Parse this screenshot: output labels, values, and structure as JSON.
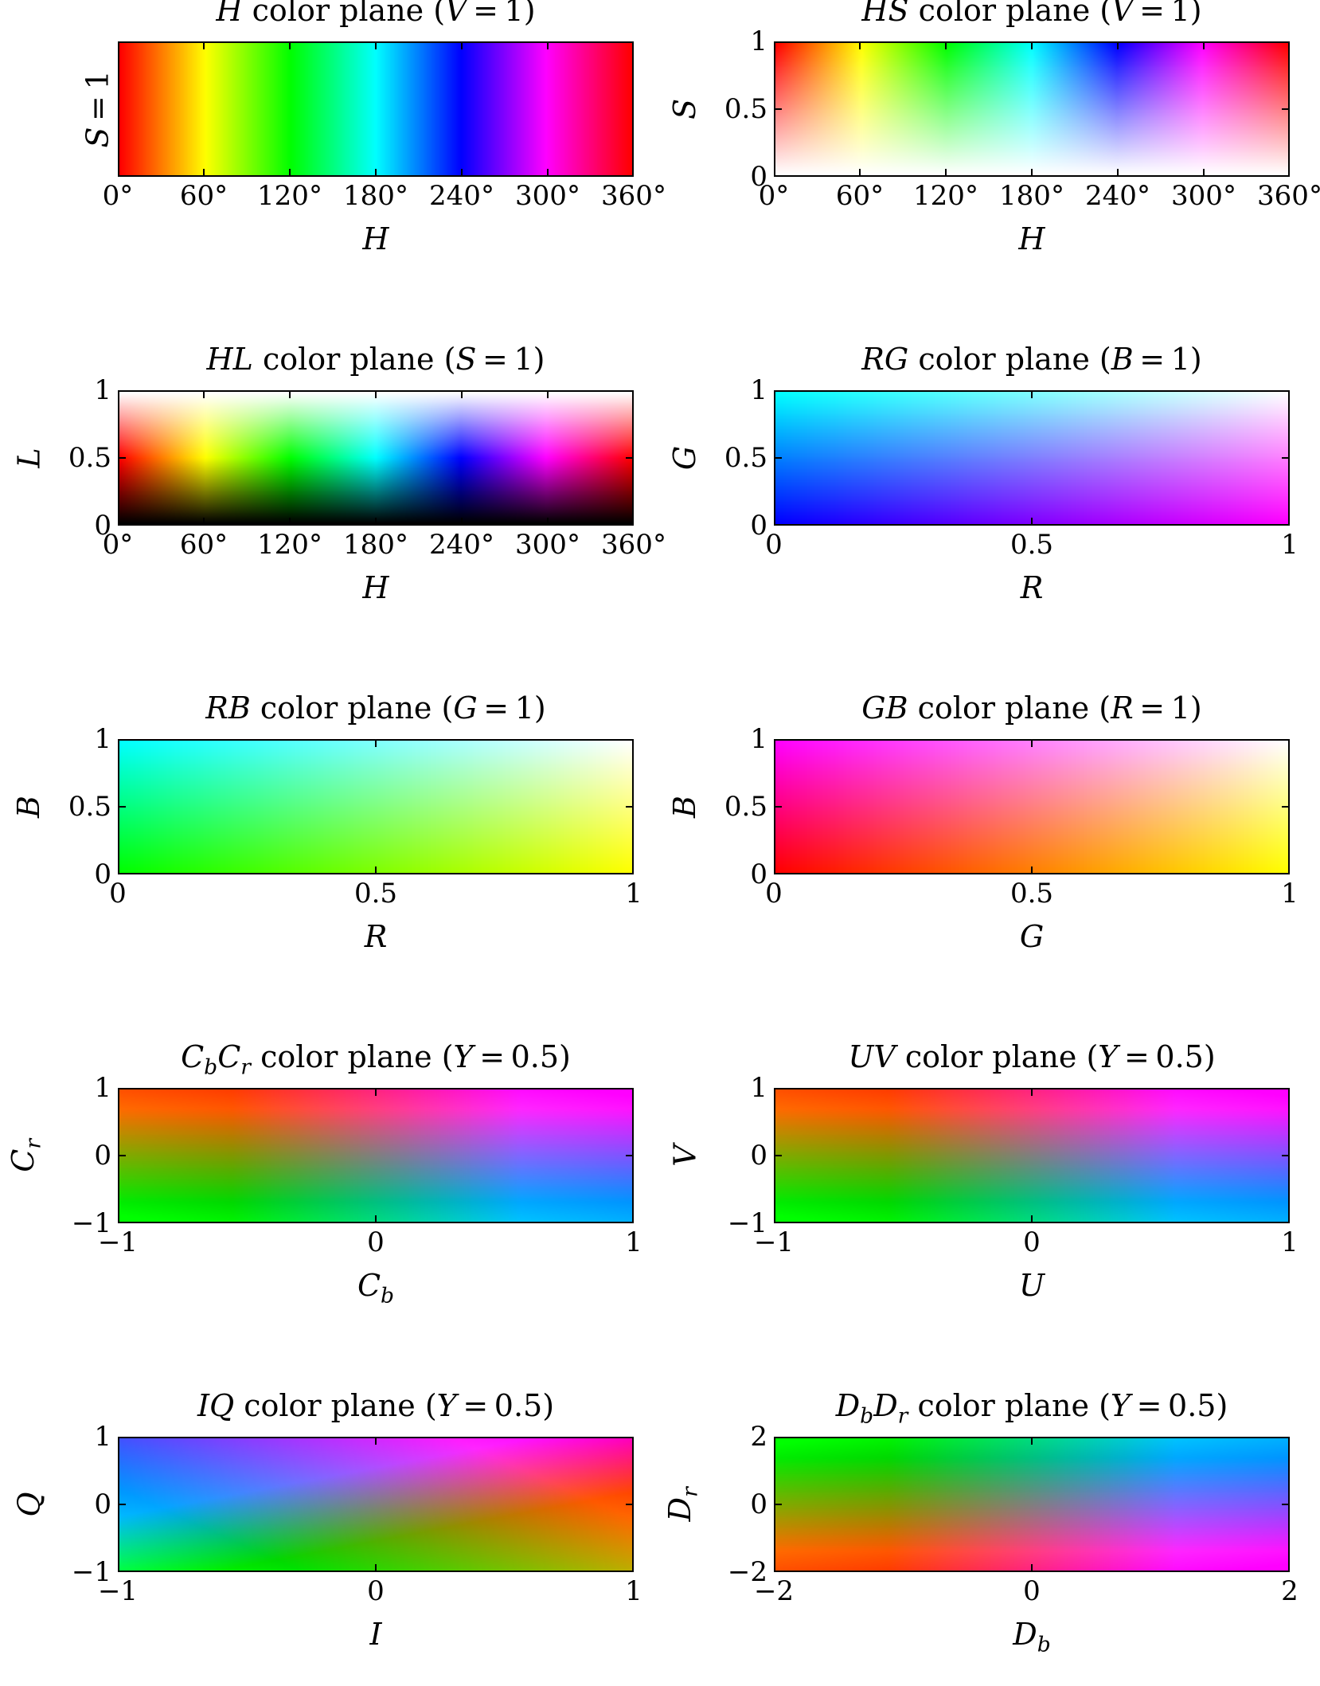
{
  "chart_data": [
    {
      "type": "heatmap",
      "space": "HSV",
      "title": "H color plane (V = 1)",
      "xlabel": "H",
      "ylabel": "S = 1",
      "xlim": [
        0,
        360
      ],
      "ylim": [
        0,
        1
      ],
      "xticks": [
        "0°",
        "60°",
        "120°",
        "180°",
        "240°",
        "300°",
        "360°"
      ],
      "yticks": []
    },
    {
      "type": "heatmap",
      "space": "HSV",
      "title": "HS color plane (V = 1)",
      "xlabel": "H",
      "ylabel": "S",
      "xlim": [
        0,
        360
      ],
      "ylim": [
        0,
        1
      ],
      "xticks": [
        "0°",
        "60°",
        "120°",
        "180°",
        "240°",
        "300°",
        "360°"
      ],
      "yticks": [
        "0",
        "0.5",
        "1"
      ]
    },
    {
      "type": "heatmap",
      "space": "HSL",
      "title": "HL color plane (S = 1)",
      "xlabel": "H",
      "ylabel": "L",
      "xlim": [
        0,
        360
      ],
      "ylim": [
        0,
        1
      ],
      "xticks": [
        "0°",
        "60°",
        "120°",
        "180°",
        "240°",
        "300°",
        "360°"
      ],
      "yticks": [
        "0",
        "0.5",
        "1"
      ]
    },
    {
      "type": "heatmap",
      "space": "RGB",
      "title": "RG color plane (B = 1)",
      "xlabel": "R",
      "ylabel": "G",
      "xlim": [
        0,
        1
      ],
      "ylim": [
        0,
        1
      ],
      "xticks": [
        "0",
        "0.5",
        "1"
      ],
      "yticks": [
        "0",
        "0.5",
        "1"
      ]
    },
    {
      "type": "heatmap",
      "space": "RGB",
      "title": "RB color plane (G = 1)",
      "xlabel": "R",
      "ylabel": "B",
      "xlim": [
        0,
        1
      ],
      "ylim": [
        0,
        1
      ],
      "xticks": [
        "0",
        "0.5",
        "1"
      ],
      "yticks": [
        "0",
        "0.5",
        "1"
      ]
    },
    {
      "type": "heatmap",
      "space": "RGB",
      "title": "GB color plane (R = 1)",
      "xlabel": "G",
      "ylabel": "B",
      "xlim": [
        0,
        1
      ],
      "ylim": [
        0,
        1
      ],
      "xticks": [
        "0",
        "0.5",
        "1"
      ],
      "yticks": [
        "0",
        "0.5",
        "1"
      ]
    },
    {
      "type": "heatmap",
      "space": "YCbCr",
      "title": "CbCr color plane (Y = 0.5)",
      "xlabel": "Cb",
      "ylabel": "Cr",
      "xlim": [
        -1,
        1
      ],
      "ylim": [
        -1,
        1
      ],
      "xticks": [
        "−1",
        "0",
        "1"
      ],
      "yticks": [
        "−1",
        "0",
        "1"
      ]
    },
    {
      "type": "heatmap",
      "space": "YUV",
      "title": "UV color plane (Y = 0.5)",
      "xlabel": "U",
      "ylabel": "V",
      "xlim": [
        -1,
        1
      ],
      "ylim": [
        -1,
        1
      ],
      "xticks": [
        "−1",
        "0",
        "1"
      ],
      "yticks": [
        "−1",
        "0",
        "1"
      ]
    },
    {
      "type": "heatmap",
      "space": "YIQ",
      "title": "IQ color plane (Y = 0.5)",
      "xlabel": "I",
      "ylabel": "Q",
      "xlim": [
        -1,
        1
      ],
      "ylim": [
        -1,
        1
      ],
      "xticks": [
        "−1",
        "0",
        "1"
      ],
      "yticks": [
        "−1",
        "0",
        "1"
      ]
    },
    {
      "type": "heatmap",
      "space": "YDbDr",
      "title": "DbDr color plane (Y = 0.5)",
      "xlabel": "Db",
      "ylabel": "Dr",
      "xlim": [
        -2,
        2
      ],
      "ylim": [
        -2,
        2
      ],
      "xticks": [
        "−2",
        "0",
        "2"
      ],
      "yticks": [
        "−2",
        "0",
        "2"
      ]
    }
  ]
}
